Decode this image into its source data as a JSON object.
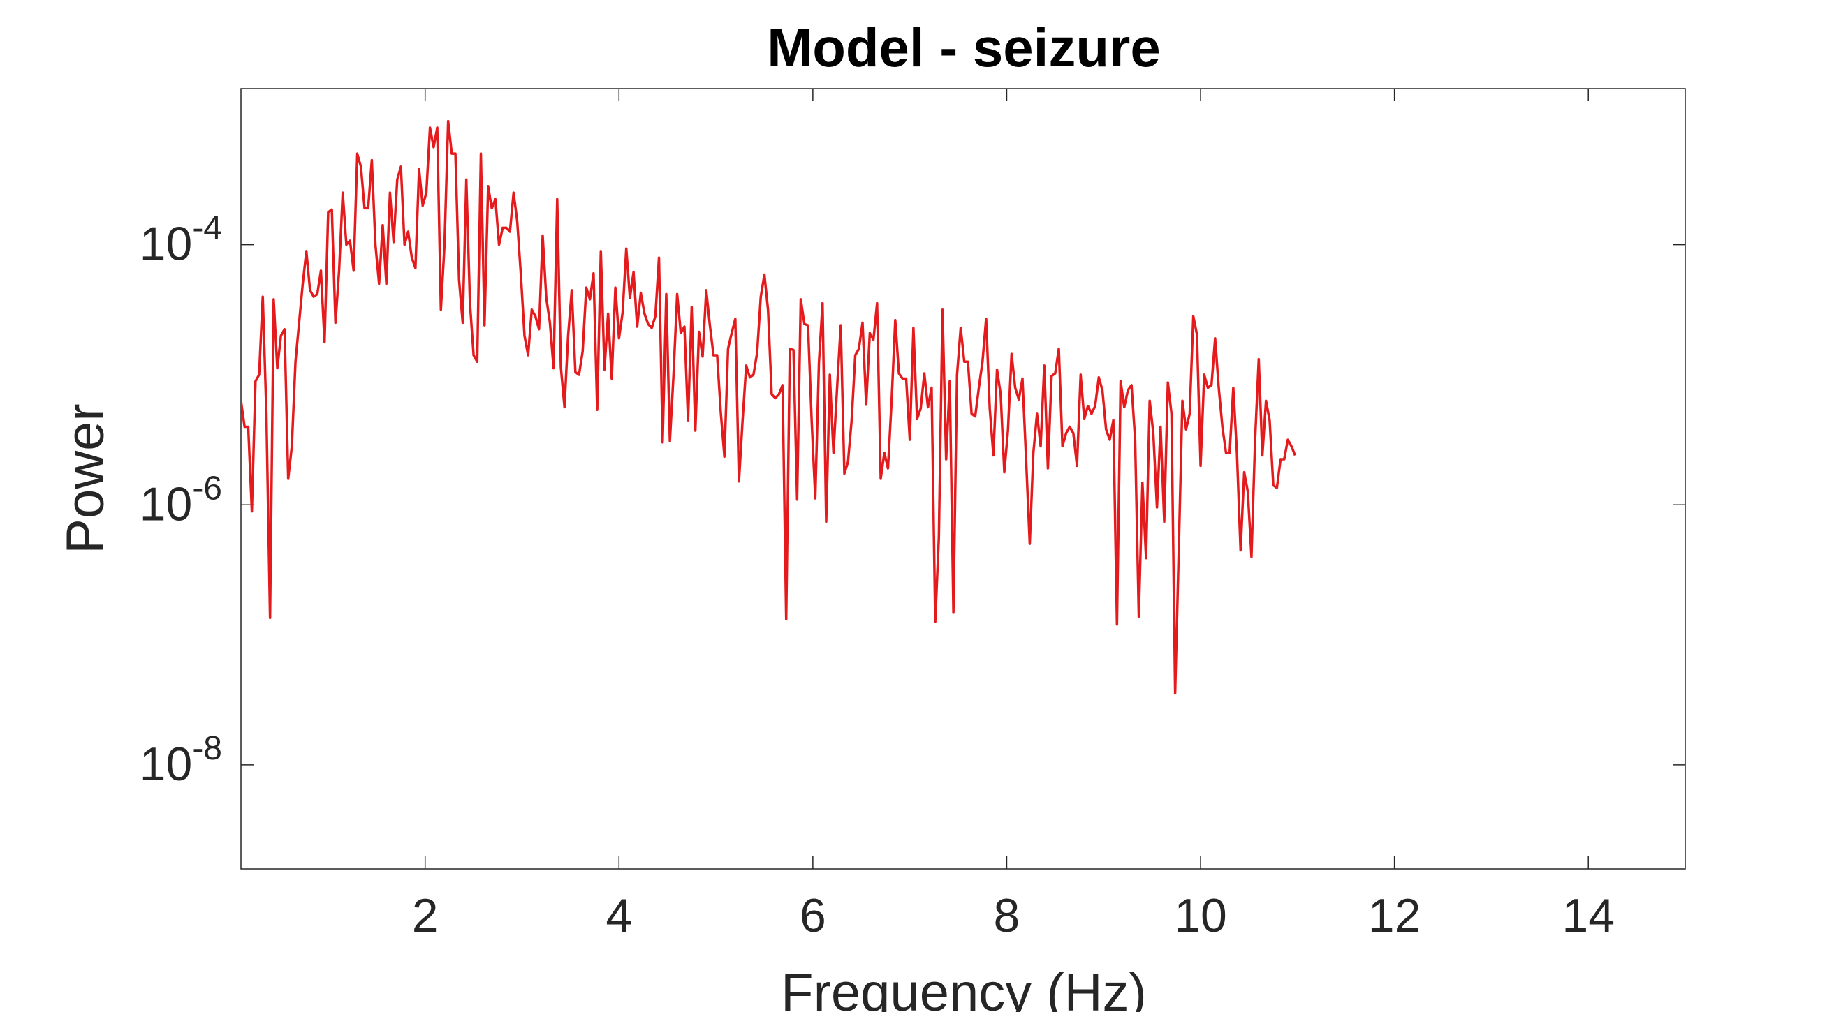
{
  "chart_data": {
    "type": "line",
    "title": "Model - seizure",
    "xlabel": "Frequency (Hz)",
    "ylabel": "Power",
    "xlim": [
      0.1,
      15
    ],
    "ylim_log10": [
      -8.8,
      -2.8
    ],
    "yscale": "log",
    "grid": false,
    "x_ticks": [
      {
        "value": 2,
        "label": "2"
      },
      {
        "value": 4,
        "label": "4"
      },
      {
        "value": 6,
        "label": "6"
      },
      {
        "value": 8,
        "label": "8"
      },
      {
        "value": 10,
        "label": "10"
      },
      {
        "value": 12,
        "label": "12"
      },
      {
        "value": 14,
        "label": "14"
      }
    ],
    "y_ticks": [
      {
        "log10": -4,
        "base": "10",
        "exponent": "-4"
      },
      {
        "log10": -6,
        "base": "10",
        "exponent": "-6"
      },
      {
        "log10": -8,
        "base": "10",
        "exponent": "-8"
      }
    ],
    "series": [
      {
        "color": "#e41a1c",
        "x_start": 0.1,
        "x_step": 0.0375,
        "log10_power": [
          -5.2,
          -5.4,
          -5.4,
          -6.05,
          -5.05,
          -5.0,
          -4.4,
          -5.3,
          -6.87,
          -4.42,
          -4.95,
          -4.7,
          -4.65,
          -5.8,
          -5.55,
          -4.9,
          -4.6,
          -4.3,
          -4.05,
          -4.35,
          -4.4,
          -4.38,
          -4.2,
          -4.75,
          -3.75,
          -3.73,
          -4.6,
          -4.2,
          -3.6,
          -4.0,
          -3.97,
          -4.2,
          -3.3,
          -3.4,
          -3.72,
          -3.72,
          -3.35,
          -4.0,
          -4.3,
          -3.85,
          -4.3,
          -3.6,
          -3.98,
          -3.5,
          -3.4,
          -4.0,
          -3.9,
          -4.1,
          -4.18,
          -3.42,
          -3.7,
          -3.6,
          -3.1,
          -3.25,
          -3.1,
          -4.5,
          -4.0,
          -3.05,
          -3.3,
          -3.3,
          -4.27,
          -4.6,
          -3.5,
          -4.45,
          -4.85,
          -4.9,
          -3.3,
          -4.62,
          -3.55,
          -3.72,
          -3.65,
          -4.0,
          -3.87,
          -3.87,
          -3.9,
          -3.6,
          -3.82,
          -4.23,
          -4.7,
          -4.85,
          -4.5,
          -4.55,
          -4.65,
          -3.93,
          -4.41,
          -4.6,
          -4.95,
          -3.65,
          -4.94,
          -5.25,
          -4.7,
          -4.35,
          -4.98,
          -5.0,
          -4.82,
          -4.33,
          -4.42,
          -4.22,
          -5.27,
          -4.05,
          -4.96,
          -4.53,
          -5.03,
          -4.33,
          -4.72,
          -4.52,
          -4.03,
          -4.41,
          -4.21,
          -4.63,
          -4.37,
          -4.53,
          -4.61,
          -4.64,
          -4.55,
          -4.1,
          -5.52,
          -4.38,
          -5.51,
          -5.0,
          -4.38,
          -4.68,
          -4.63,
          -5.35,
          -4.48,
          -5.43,
          -4.67,
          -4.86,
          -4.35,
          -4.62,
          -4.85,
          -4.85,
          -5.29,
          -5.63,
          -4.8,
          -4.68,
          -4.57,
          -5.82,
          -5.35,
          -4.93,
          -5.02,
          -5.0,
          -4.83,
          -4.4,
          -4.23,
          -4.5,
          -5.15,
          -5.18,
          -5.15,
          -5.08,
          -6.88,
          -4.8,
          -4.81,
          -5.96,
          -4.42,
          -4.61,
          -4.62,
          -5.35,
          -5.95,
          -4.91,
          -4.45,
          -6.13,
          -5.0,
          -5.6,
          -5.1,
          -4.62,
          -5.76,
          -5.67,
          -5.35,
          -4.85,
          -4.8,
          -4.6,
          -5.23,
          -4.68,
          -4.73,
          -4.45,
          -5.8,
          -5.6,
          -5.72,
          -5.2,
          -4.58,
          -4.99,
          -5.03,
          -5.03,
          -5.5,
          -4.64,
          -5.34,
          -5.26,
          -4.99,
          -5.25,
          -5.1,
          -6.9,
          -6.25,
          -4.5,
          -5.65,
          -5.05,
          -6.83,
          -5.0,
          -4.64,
          -4.9,
          -4.9,
          -5.3,
          -5.32,
          -5.1,
          -4.9,
          -4.57,
          -5.26,
          -5.62,
          -4.96,
          -5.15,
          -5.75,
          -5.43,
          -4.84,
          -5.1,
          -5.19,
          -5.03,
          -5.65,
          -6.3,
          -5.6,
          -5.3,
          -5.55,
          -4.93,
          -5.72,
          -5.01,
          -4.99,
          -4.8,
          -5.55,
          -5.45,
          -5.4,
          -5.45,
          -5.7,
          -5.0,
          -5.34,
          -5.24,
          -5.3,
          -5.24,
          -5.02,
          -5.12,
          -5.42,
          -5.5,
          -5.35,
          -6.92,
          -5.05,
          -5.25,
          -5.12,
          -5.08,
          -5.5,
          -6.86,
          -5.83,
          -6.41,
          -5.2,
          -5.45,
          -6.02,
          -5.4,
          -6.13,
          -5.06,
          -5.3,
          -7.45,
          -6.35,
          -5.2,
          -5.42,
          -5.3,
          -4.55,
          -4.69,
          -5.7,
          -5.0,
          -5.1,
          -5.08,
          -4.72,
          -5.1,
          -5.4,
          -5.6,
          -5.6,
          -5.1,
          -5.6,
          -6.35,
          -5.75,
          -5.9,
          -6.4,
          -5.5,
          -4.88,
          -5.62,
          -5.2,
          -5.35,
          -5.85,
          -5.87,
          -5.65,
          -5.65,
          -5.5,
          -5.55,
          -5.62
        ]
      }
    ]
  }
}
